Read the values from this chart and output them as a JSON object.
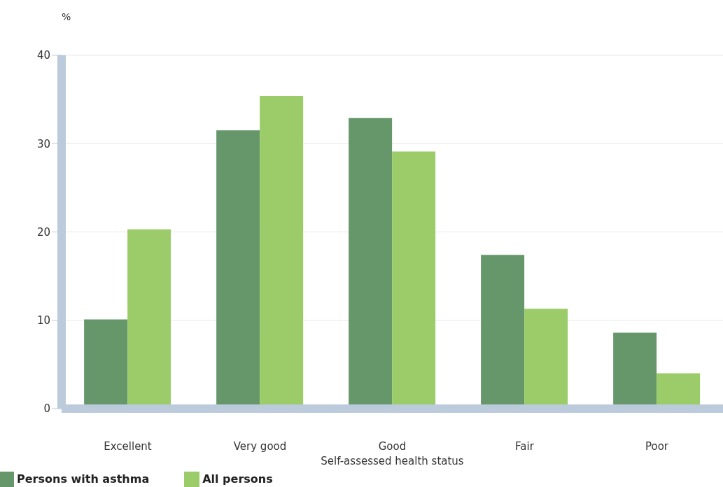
{
  "chart_data": {
    "type": "bar",
    "ylabel": "%",
    "xlabel": "Self-assessed health status",
    "categories": [
      "Excellent",
      "Very good",
      "Good",
      "Fair",
      "Poor"
    ],
    "series": [
      {
        "name": "Persons with asthma",
        "color": "#66976a",
        "values": [
          10.1,
          31.5,
          32.9,
          17.4,
          8.6
        ]
      },
      {
        "name": "All persons",
        "color": "#9ccc6a",
        "values": [
          20.3,
          35.4,
          29.1,
          11.3,
          4.0
        ]
      }
    ],
    "ylim": [
      0,
      40
    ],
    "yticks": [
      0,
      10,
      20,
      30,
      40
    ],
    "grid": "y",
    "legend": "bottom left"
  }
}
